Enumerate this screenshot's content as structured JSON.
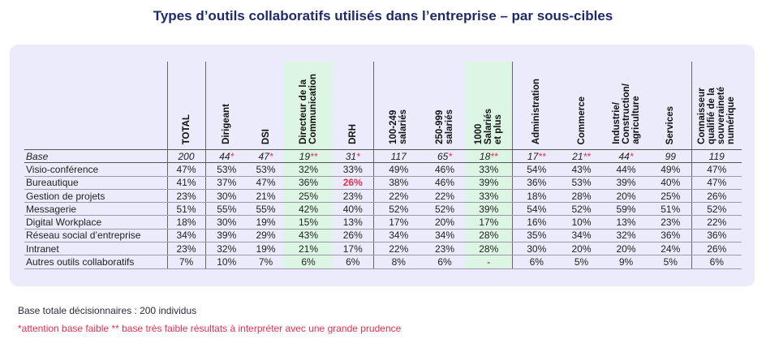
{
  "title": "Types d’outils collaboratifs utilisés dans l’entreprise – par sous-cibles",
  "colors": {
    "title": "#1f2a6b",
    "panel": "#ecebfb",
    "highlight": "#dcf6e3",
    "alert": "#e0304f"
  },
  "chart_data": {
    "type": "table",
    "columns": [
      "TOTAL",
      "Dirigeant",
      "DSI",
      "Directeur de la\nCommunication",
      "DRH",
      "100-249\nsalariés",
      "250-999\nsalariés",
      "1000\nSalariés\net plus",
      "Administration",
      "Commerce",
      "Industrie/\nConstruction/\nagriculture",
      "Services",
      "Connaisseur\nqualifié de la\nsouveraineté\nnumérique"
    ],
    "base": {
      "label": "Base",
      "values": [
        "200",
        "44",
        "47",
        "19",
        "31",
        "117",
        "65",
        "18",
        "17",
        "21",
        "44",
        "99",
        "119"
      ],
      "marks": [
        "",
        "*",
        "*",
        "**",
        "*",
        "",
        "*",
        "**",
        "**",
        "**",
        "*",
        "",
        ""
      ]
    },
    "rows": [
      {
        "label": "Visio-conférence",
        "values": [
          "47%",
          "53%",
          "53%",
          "32%",
          "33%",
          "49%",
          "46%",
          "33%",
          "54%",
          "43%",
          "44%",
          "49%",
          "47%"
        ]
      },
      {
        "label": "Bureautique",
        "values": [
          "41%",
          "37%",
          "47%",
          "36%",
          "26%",
          "38%",
          "46%",
          "39%",
          "36%",
          "53%",
          "39%",
          "40%",
          "47%"
        ]
      },
      {
        "label": "Gestion de projets",
        "values": [
          "23%",
          "30%",
          "21%",
          "25%",
          "23%",
          "22%",
          "22%",
          "33%",
          "18%",
          "28%",
          "20%",
          "25%",
          "26%"
        ]
      },
      {
        "label": "Messagerie",
        "values": [
          "51%",
          "55%",
          "55%",
          "42%",
          "40%",
          "52%",
          "52%",
          "39%",
          "54%",
          "52%",
          "59%",
          "51%",
          "52%"
        ]
      },
      {
        "label": "Digital Workplace",
        "values": [
          "18%",
          "30%",
          "19%",
          "15%",
          "13%",
          "17%",
          "20%",
          "17%",
          "16%",
          "10%",
          "13%",
          "23%",
          "22%"
        ]
      },
      {
        "label": "Réseau social d’entreprise",
        "values": [
          "34%",
          "39%",
          "29%",
          "43%",
          "26%",
          "34%",
          "34%",
          "28%",
          "35%",
          "34%",
          "32%",
          "36%",
          "36%"
        ]
      },
      {
        "label": "Intranet",
        "values": [
          "23%",
          "32%",
          "19%",
          "21%",
          "17%",
          "22%",
          "23%",
          "28%",
          "30%",
          "20%",
          "20%",
          "24%",
          "26%"
        ]
      },
      {
        "label": "Autres outils collaboratifs",
        "values": [
          "7%",
          "10%",
          "7%",
          "6%",
          "6%",
          "8%",
          "6%",
          "-",
          "6%",
          "5%",
          "9%",
          "5%",
          "6%"
        ]
      }
    ]
  },
  "footnotes": {
    "base_note": "Base totale décisionnaires : 200 individus",
    "warning": "*attention base faible ** base très faible résultats à interpréter avec une grande prudence"
  }
}
